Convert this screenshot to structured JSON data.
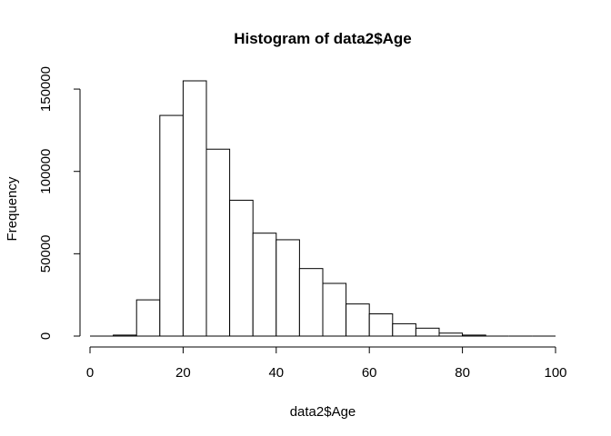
{
  "chart_data": {
    "type": "bar",
    "title": "Histogram of data2$Age",
    "xlabel": "data2$Age",
    "ylabel": "Frequency",
    "xlim": [
      0,
      100
    ],
    "ylim": [
      0,
      155000
    ],
    "x_ticks": [
      0,
      20,
      40,
      60,
      80,
      100
    ],
    "y_ticks": [
      0,
      50000,
      100000,
      150000
    ],
    "bin_width": 5,
    "bins": [
      {
        "start": 0,
        "end": 5,
        "count": 0
      },
      {
        "start": 5,
        "end": 10,
        "count": 600
      },
      {
        "start": 10,
        "end": 15,
        "count": 22000
      },
      {
        "start": 15,
        "end": 20,
        "count": 134000
      },
      {
        "start": 20,
        "end": 25,
        "count": 155000
      },
      {
        "start": 25,
        "end": 30,
        "count": 113500
      },
      {
        "start": 30,
        "end": 35,
        "count": 82500
      },
      {
        "start": 35,
        "end": 40,
        "count": 62500
      },
      {
        "start": 40,
        "end": 45,
        "count": 58500
      },
      {
        "start": 45,
        "end": 50,
        "count": 41000
      },
      {
        "start": 50,
        "end": 55,
        "count": 32000
      },
      {
        "start": 55,
        "end": 60,
        "count": 19500
      },
      {
        "start": 60,
        "end": 65,
        "count": 13500
      },
      {
        "start": 65,
        "end": 70,
        "count": 7500
      },
      {
        "start": 70,
        "end": 75,
        "count": 4800
      },
      {
        "start": 75,
        "end": 80,
        "count": 1800
      },
      {
        "start": 80,
        "end": 85,
        "count": 600
      },
      {
        "start": 85,
        "end": 90,
        "count": 0
      },
      {
        "start": 90,
        "end": 95,
        "count": 0
      },
      {
        "start": 95,
        "end": 100,
        "count": 0
      }
    ],
    "grid": false,
    "bar_fill": "#ffffff",
    "bar_stroke": "#000000"
  }
}
